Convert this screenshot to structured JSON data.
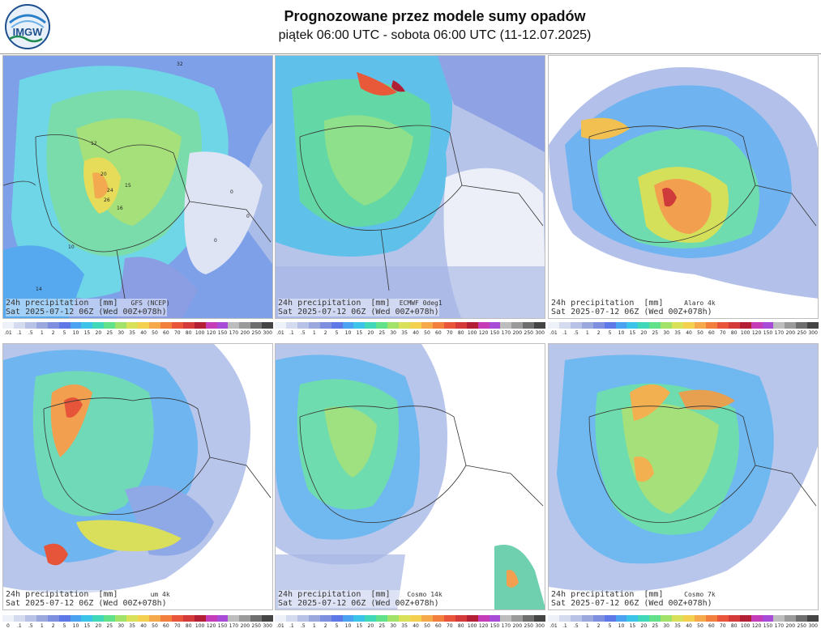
{
  "header": {
    "logo_text": "IMGW",
    "title": "Prognozowane przez modele sumy opadów",
    "subtitle": "piątek 06:00 UTC - sobota 06:00 UTC (11-12.07.2025)"
  },
  "panels": [
    {
      "line1": "24h precipitation  [mm]",
      "line2": "Sat 2025-07-12 06Z (Wed 00Z+078h)",
      "model": "GFS (NCEP)"
    },
    {
      "line1": "24h precipitation  [mm]",
      "line2": "Sat 2025-07-12 06Z (Wed 00Z+078h)",
      "model": "ECMWF 0deg1"
    },
    {
      "line1": "24h precipitation  [mm]",
      "line2": "Sat 2025-07-12 06Z (Wed 00Z+078h)",
      "model": "Alaro 4k"
    },
    {
      "line1": "24h precipitation  [mm]",
      "line2": "Sat 2025-07-12 06Z (Wed 00Z+078h)",
      "model": "um 4k"
    },
    {
      "line1": "24h precipitation  [mm]",
      "line2": "Sat 2025-07-12 06Z (Wed 00Z+078h)",
      "model": "Cosmo 14k"
    },
    {
      "line1": "24h precipitation  [mm]",
      "line2": "Sat 2025-07-12 06Z (Wed 00Z+078h)",
      "model": "Cosmo 7k"
    }
  ],
  "scale": {
    "ticks": [
      ".01",
      ".1",
      ".5",
      "1",
      "2",
      "5",
      "10",
      "15",
      "20",
      "25",
      "30",
      "35",
      "40",
      "50",
      "60",
      "70",
      "80",
      "100",
      "120",
      "150",
      "170",
      "200",
      "250",
      "300"
    ],
    "colors": [
      "#eef1f7",
      "#d4dbee",
      "#b8c2e6",
      "#9aa8de",
      "#7e8fe0",
      "#5f78e8",
      "#4aa2f0",
      "#3cc3e8",
      "#40d8b8",
      "#63e08a",
      "#a3e26a",
      "#d9e05a",
      "#f3d04f",
      "#f6a94a",
      "#f27f3d",
      "#e8553a",
      "#d43a3a",
      "#b31f34",
      "#c43cb8",
      "#a84bd6",
      "#bdbdbd",
      "#9a9a9a",
      "#6e6e6e",
      "#444444"
    ]
  },
  "bottom_scale_ticks": [
    "0",
    ".1",
    ".5",
    "1",
    "2",
    "5",
    "10",
    "15",
    "20",
    "25",
    "30",
    "35",
    "40",
    "50",
    "60",
    "70",
    "80",
    "100",
    "120",
    "150",
    "170",
    "200",
    "250",
    "300"
  ]
}
